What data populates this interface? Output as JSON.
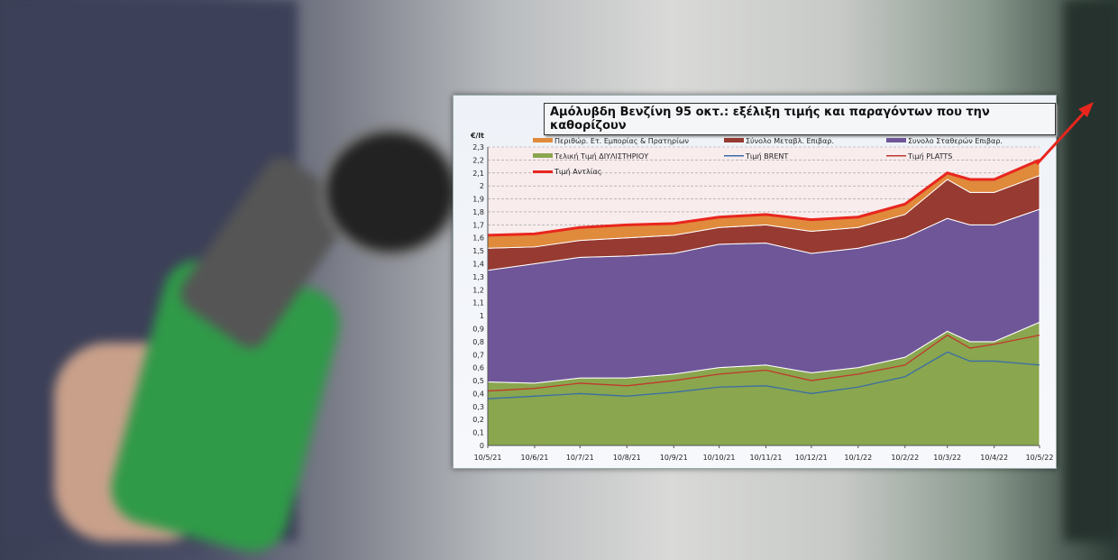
{
  "chart_data": {
    "type": "area",
    "title": "Αμόλυβδη Βενζίνη 95 οκτ.: εξέλιξη τιμής και παραγόντων που την καθορίζουν",
    "ylabel": "€/lt",
    "ylim": [
      0,
      2.3
    ],
    "yticks": [
      "0",
      "0,1",
      "0,2",
      "0,3",
      "0,4",
      "0,5",
      "0,6",
      "0,7",
      "0,8",
      "0,9",
      "1",
      "1,1",
      "1,2",
      "1,3",
      "1,4",
      "1,5",
      "1,6",
      "1,7",
      "1,8",
      "1,9",
      "2",
      "2,1",
      "2,2",
      "2,3"
    ],
    "xtick_labels": [
      "10/5/21",
      "10/6/21",
      "10/7/21",
      "10/8/21",
      "10/9/21",
      "10/10/21",
      "10/11/21",
      "10/12/21",
      "10/1/22",
      "10/2/22",
      "10/3/22",
      "10/4/22",
      "10/5/22"
    ],
    "xtick_dates": [
      "2021-05-10",
      "2021-06-10",
      "2021-07-10",
      "2021-08-10",
      "2021-09-10",
      "2021-10-10",
      "2021-11-10",
      "2021-12-10",
      "2022-01-10",
      "2022-02-10",
      "2022-03-10",
      "2022-04-10",
      "2022-05-10"
    ],
    "x": [
      "2021-05-10",
      "2021-06-10",
      "2021-07-10",
      "2021-08-10",
      "2021-09-10",
      "2021-10-10",
      "2021-11-10",
      "2021-12-10",
      "2022-01-10",
      "2022-02-10",
      "2022-03-10",
      "2022-03-25",
      "2022-04-10",
      "2022-05-10"
    ],
    "stacked_series": [
      {
        "name": "Τελική Τιμή ΔΙΥΛΙΣΤΗΡΙΟΥ",
        "color": "#8aa64f",
        "values": [
          0.49,
          0.48,
          0.52,
          0.52,
          0.55,
          0.6,
          0.62,
          0.56,
          0.6,
          0.68,
          0.88,
          0.8,
          0.8,
          0.95
        ]
      },
      {
        "name": "Συνολο Σταθερών Επιβαρ.",
        "color": "#6f5698",
        "values": [
          0.86,
          0.92,
          0.93,
          0.94,
          0.93,
          0.95,
          0.94,
          0.92,
          0.92,
          0.92,
          0.87,
          0.9,
          0.9,
          0.87
        ]
      },
      {
        "name": "Σύνολο Μεταβλ. Επιβαρ.",
        "color": "#963a32",
        "values": [
          0.17,
          0.13,
          0.13,
          0.14,
          0.14,
          0.13,
          0.14,
          0.17,
          0.16,
          0.18,
          0.3,
          0.25,
          0.25,
          0.26
        ]
      },
      {
        "name": "Περιθώρ. Ετ. Εμπορίας & Πρατηρίων",
        "color": "#e08a3c",
        "values": [
          0.1,
          0.1,
          0.1,
          0.1,
          0.09,
          0.08,
          0.08,
          0.09,
          0.08,
          0.08,
          0.05,
          0.1,
          0.1,
          0.12
        ]
      }
    ],
    "line_series": [
      {
        "name": "Τιμή BRENT",
        "color": "#3a6ea5",
        "values": [
          0.36,
          0.38,
          0.4,
          0.38,
          0.41,
          0.45,
          0.46,
          0.4,
          0.45,
          0.53,
          0.72,
          0.65,
          0.65,
          0.62
        ]
      },
      {
        "name": "Τιμή PLATTS",
        "color": "#c0392b",
        "values": [
          0.42,
          0.44,
          0.48,
          0.46,
          0.5,
          0.55,
          0.58,
          0.5,
          0.55,
          0.62,
          0.85,
          0.75,
          0.78,
          0.85
        ]
      },
      {
        "name": "Τιμή Αντλίας",
        "color": "#e8261e",
        "values": [
          1.62,
          1.63,
          1.68,
          1.7,
          1.71,
          1.76,
          1.78,
          1.74,
          1.76,
          1.86,
          2.1,
          2.05,
          2.05,
          2.2
        ]
      }
    ],
    "legend_order": [
      "Περιθώρ. Ετ. Εμπορίας & Πρατηρίων",
      "Σύνολο Μεταβλ. Επιβαρ.",
      "Συνολο Σταθερών Επιβαρ.",
      "Τελική Τιμή ΔΙΥΛΙΣΤΗΡΙΟΥ",
      "Τιμή BRENT",
      "Τιμή PLATTS",
      "Τιμή Αντλίας"
    ],
    "legend_placement": "top",
    "grid": "horizontal dashed"
  }
}
